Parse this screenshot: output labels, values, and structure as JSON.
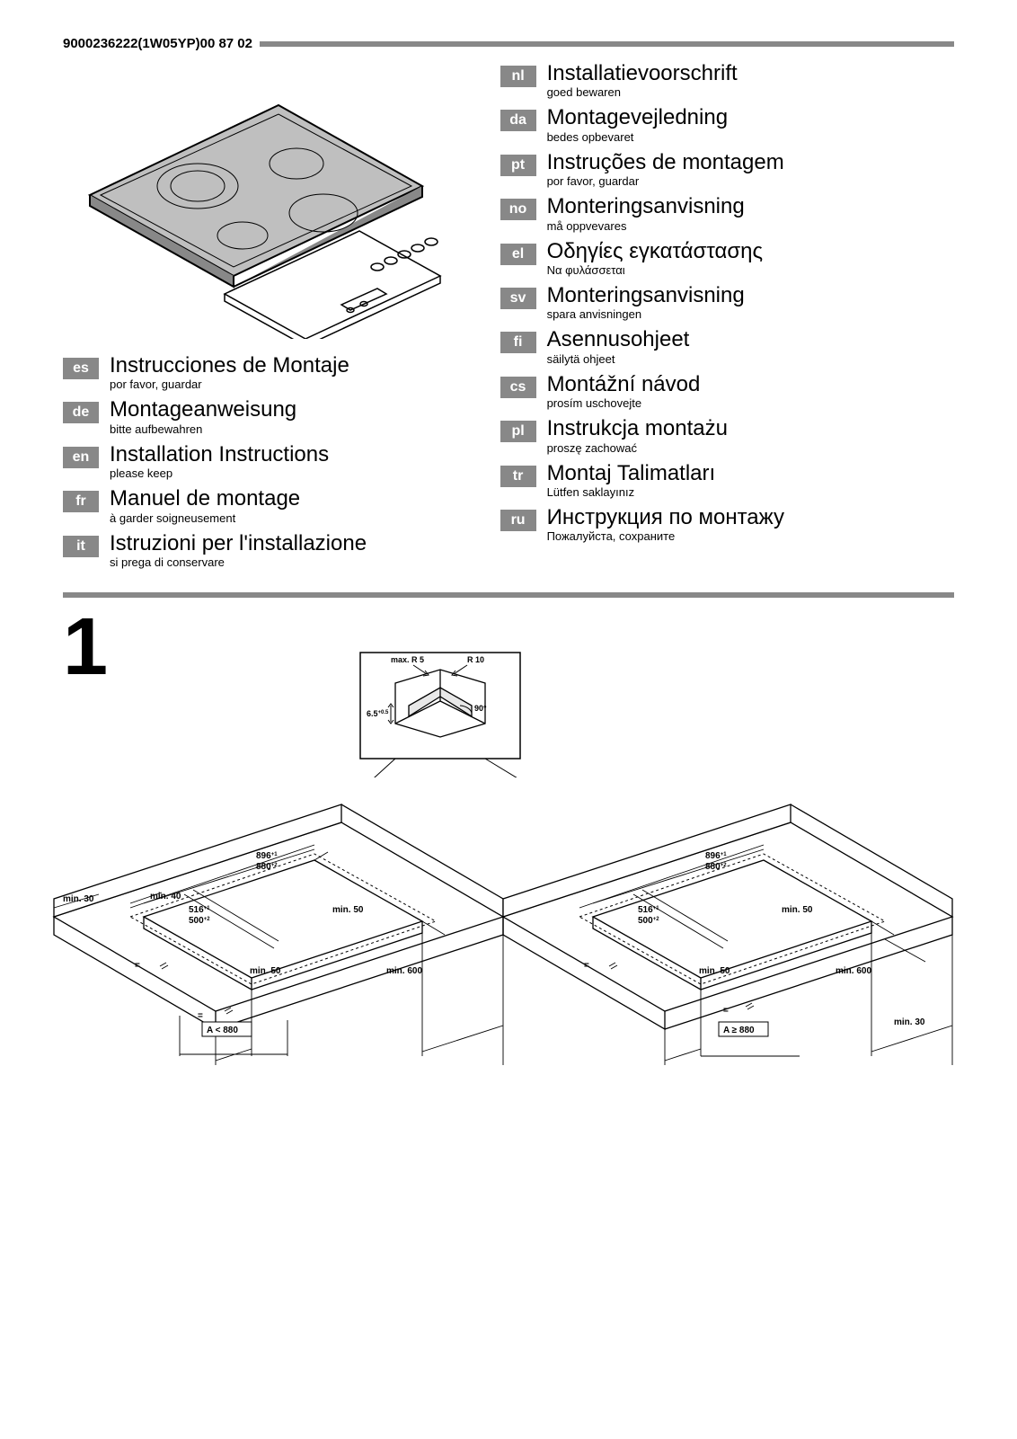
{
  "doc_id": "9000236222(1W05YP)00 87 02",
  "languages_left": [
    {
      "code": "es",
      "title": "Instrucciones de Montaje",
      "sub": "por favor, guardar"
    },
    {
      "code": "de",
      "title": "Montageanweisung",
      "sub": "bitte aufbewahren"
    },
    {
      "code": "en",
      "title": "Installation Instructions",
      "sub": "please keep"
    },
    {
      "code": "fr",
      "title": "Manuel de montage",
      "sub": "à garder soigneusement"
    },
    {
      "code": "it",
      "title": "Istruzioni per l'installazione",
      "sub": "si prega di conservare"
    }
  ],
  "languages_right": [
    {
      "code": "nl",
      "title": "Installatievoorschrift",
      "sub": "goed bewaren"
    },
    {
      "code": "da",
      "title": "Montagevejledning",
      "sub": "bedes opbevaret"
    },
    {
      "code": "pt",
      "title": "Instruções de montagem",
      "sub": "por favor, guardar"
    },
    {
      "code": "no",
      "title": "Monteringsanvisning",
      "sub": "må oppvevares"
    },
    {
      "code": "el",
      "title": "Οδηγίες εγκατάστασης",
      "sub": "Να φυλάσσεται"
    },
    {
      "code": "sv",
      "title": "Monteringsanvisning",
      "sub": "spara anvisningen"
    },
    {
      "code": "fi",
      "title": "Asennusohjeet",
      "sub": "säilytä ohjeet"
    },
    {
      "code": "cs",
      "title": "Montážní návod",
      "sub": "prosím uschovejte"
    },
    {
      "code": "pl",
      "title": "Instrukcja montażu",
      "sub": "proszę zachować"
    },
    {
      "code": "tr",
      "title": "Montaj Talimatları",
      "sub": "Lütfen saklayınız"
    },
    {
      "code": "ru",
      "title": "Инструкция по монтажу",
      "sub": "Пожалуйста, сохраните"
    }
  ],
  "figure_number": "1",
  "detail": {
    "max_r": "max. R 5",
    "r10": "R 10",
    "six5": "6.5",
    "six5_tol": "+0.5",
    "ninety": "90°"
  },
  "dims": {
    "w896": "896",
    "w896_tol": "+1",
    "w880": "880",
    "w880_tol": "+2",
    "d516": "516",
    "d516_tol": "+1",
    "d500": "500",
    "d500_tol": "+2",
    "min30": "min. 30",
    "min40": "min. 40",
    "min50": "min. 50",
    "min600": "min. 600",
    "a_lt": "A < 880",
    "a_ge": "A ≥ 880",
    "eq": "="
  },
  "colors": {
    "grey": "#888888",
    "panel_fill": "#bfbfbf",
    "light": "#e8e8e8"
  }
}
